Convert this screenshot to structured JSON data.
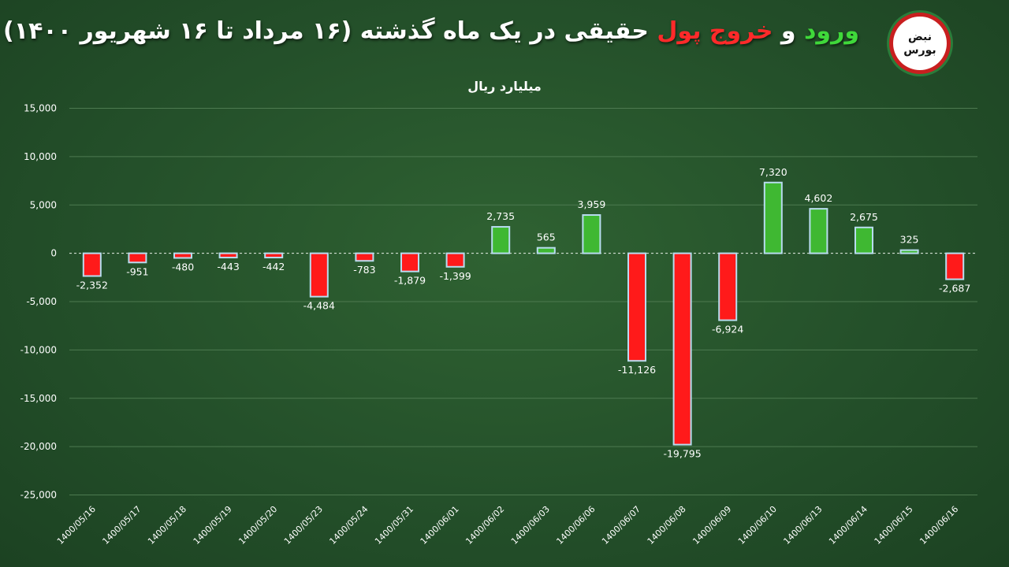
{
  "header": {
    "title_part1": "ورود",
    "title_part2": "و",
    "title_part3": "خروج پول",
    "title_part4": "حقیقی در یک ماه گذشته (۱۶ مرداد تا ۱۶ شهریور ۱۴۰۰)",
    "logo_line1": "نبض",
    "logo_line2": "بورس"
  },
  "colors": {
    "positive": "#3fb832",
    "negative": "#ff1a1a",
    "bar_border": "#b8dcef",
    "grid": "#4d7a50"
  },
  "chart_data": {
    "type": "bar",
    "ylabel": "میلیارد ریال",
    "ylim": [
      -25000,
      15000
    ],
    "yticks": [
      15000,
      10000,
      5000,
      0,
      -5000,
      -10000,
      -15000,
      -20000,
      -25000
    ],
    "ytick_labels": [
      "15,000",
      "10,000",
      "5,000",
      "0",
      "-5,000",
      "-10,000",
      "-15,000",
      "-20,000",
      "-25,000"
    ],
    "categories": [
      "1400/05/16",
      "1400/05/17",
      "1400/05/18",
      "1400/05/19",
      "1400/05/20",
      "1400/05/23",
      "1400/05/24",
      "1400/05/31",
      "1400/06/01",
      "1400/06/02",
      "1400/06/03",
      "1400/06/06",
      "1400/06/07",
      "1400/06/08",
      "1400/06/09",
      "1400/06/10",
      "1400/06/13",
      "1400/06/14",
      "1400/06/15",
      "1400/06/16"
    ],
    "values": [
      -2352,
      -951,
      -480,
      -443,
      -442,
      -4484,
      -783,
      -1879,
      -1399,
      2735,
      565,
      3959,
      -11126,
      -19795,
      -6924,
      7320,
      4602,
      2675,
      325,
      -2687
    ],
    "value_labels": [
      "-2,352",
      "-951",
      "-480",
      "-443",
      "-442",
      "-4,484",
      "-783",
      "-1,879",
      "-1,399",
      "2,735",
      "565",
      "3,959",
      "-11,126",
      "-19,795",
      "-6,924",
      "7,320",
      "4,602",
      "2,675",
      "325",
      "-2,687"
    ],
    "grid": true
  }
}
